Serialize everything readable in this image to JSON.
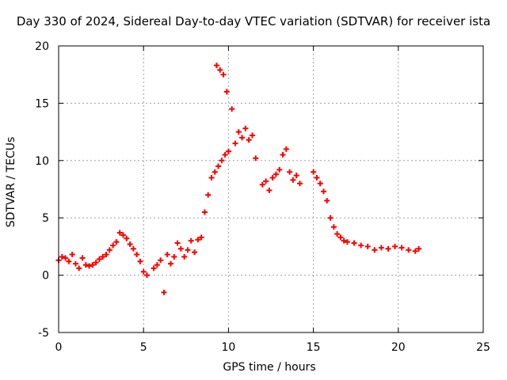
{
  "chart_data": {
    "type": "scatter",
    "title": "Day 330 of 2024, Sidereal Day-to-day VTEC variation (SDTVAR) for receiver ista",
    "xlabel": "GPS time / hours",
    "ylabel": "SDTVAR / TECUs",
    "xlim": [
      0,
      25
    ],
    "ylim": [
      -5,
      20
    ],
    "xticks": [
      "0",
      "5",
      "10",
      "15",
      "20",
      "25"
    ],
    "yticks": [
      "-5",
      "0",
      "5",
      "10",
      "15",
      "20"
    ],
    "grid": true,
    "marker": "+",
    "series": [
      {
        "name": "SDTVAR",
        "color": "#ff0000",
        "x": [
          0.0,
          0.2,
          0.4,
          0.6,
          0.8,
          1.0,
          1.2,
          1.4,
          1.6,
          1.8,
          2.0,
          2.2,
          2.4,
          2.6,
          2.8,
          3.0,
          3.2,
          3.4,
          3.6,
          3.8,
          4.0,
          4.2,
          4.4,
          4.6,
          4.8,
          5.0,
          5.2,
          5.6,
          5.8,
          6.0,
          6.2,
          6.4,
          6.6,
          6.8,
          7.0,
          7.2,
          7.4,
          7.6,
          7.8,
          8.0,
          8.2,
          8.4,
          8.6,
          8.8,
          9.0,
          9.2,
          9.3,
          9.4,
          9.5,
          9.6,
          9.7,
          9.8,
          9.9,
          10.0,
          10.2,
          10.4,
          10.6,
          10.8,
          11.0,
          11.2,
          11.4,
          11.6,
          12.0,
          12.2,
          12.4,
          12.6,
          12.8,
          13.0,
          13.2,
          13.4,
          13.6,
          13.8,
          14.0,
          14.2,
          15.0,
          15.2,
          15.4,
          15.6,
          15.8,
          16.0,
          16.2,
          16.4,
          16.6,
          16.8,
          17.0,
          17.4,
          17.8,
          18.2,
          18.6,
          19.0,
          19.4,
          19.8,
          20.2,
          20.6,
          21.0,
          21.2
        ],
        "values": [
          1.3,
          1.6,
          1.5,
          1.2,
          1.8,
          1.0,
          0.6,
          1.5,
          0.9,
          0.8,
          0.9,
          1.1,
          1.4,
          1.6,
          1.8,
          2.2,
          2.6,
          2.9,
          3.7,
          3.5,
          3.2,
          2.7,
          2.3,
          1.8,
          1.2,
          0.3,
          0.0,
          0.6,
          0.9,
          1.3,
          -1.5,
          1.8,
          1.0,
          1.6,
          2.8,
          2.3,
          1.6,
          2.2,
          3.0,
          2.0,
          3.1,
          3.3,
          5.5,
          7.0,
          8.5,
          9.0,
          18.3,
          9.5,
          17.9,
          10.0,
          17.5,
          10.5,
          16.0,
          10.8,
          14.5,
          11.5,
          12.5,
          12.0,
          12.8,
          11.8,
          12.2,
          10.2,
          7.9,
          8.2,
          7.4,
          8.5,
          8.8,
          9.2,
          10.5,
          11.0,
          9.0,
          8.3,
          8.7,
          8.0,
          9.0,
          8.5,
          8.0,
          7.3,
          6.5,
          5.0,
          4.2,
          3.6,
          3.3,
          3.0,
          2.9,
          2.8,
          2.6,
          2.5,
          2.2,
          2.4,
          2.3,
          2.5,
          2.4,
          2.2,
          2.1,
          2.3
        ]
      }
    ]
  }
}
